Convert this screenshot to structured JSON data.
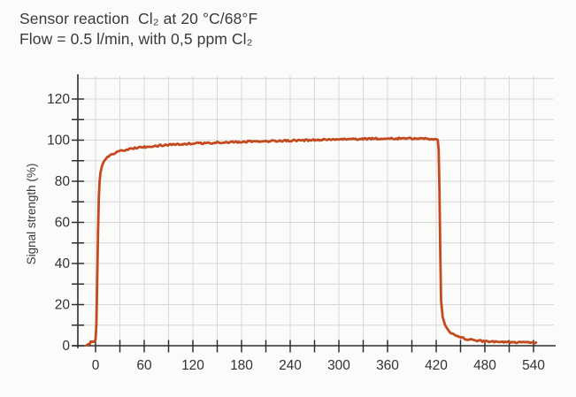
{
  "header": {
    "title_line1": "Sensor reaction  Cl₂ at 20 °C/68°F",
    "title_line2": "Flow = 0.5 l/min, with 0,5 ppm Cl₂"
  },
  "chart_data": {
    "type": "line",
    "title": "Sensor reaction  Cl₂ at 20 °C/68°F",
    "subtitle": "Flow = 0.5 l/min, with 0,5 ppm Cl₂",
    "xlabel": "",
    "ylabel": "Signal strength (%)",
    "xlim": [
      -22,
      566
    ],
    "ylim": [
      0,
      131
    ],
    "x_major_ticks": [
      0,
      60,
      120,
      180,
      240,
      300,
      360,
      420,
      480,
      540
    ],
    "x_minor_step": 30,
    "y_major_ticks": [
      0,
      20,
      40,
      60,
      80,
      100,
      120
    ],
    "y_minor_step": 10,
    "grid": {
      "on": true,
      "x_step": 30,
      "y_step": 10,
      "color": "#d8d8dc"
    },
    "legend": "none",
    "line_color": "#c24a1e",
    "axis_color": "#2e2e2e",
    "tick_label_color": "#333333",
    "points": [
      [
        -11,
        0.4
      ],
      [
        -9,
        0.5
      ],
      [
        -7,
        0.8
      ],
      [
        -6,
        2.0
      ],
      [
        -4,
        2.3
      ],
      [
        -2,
        2.1
      ],
      [
        -1,
        2.2
      ],
      [
        0,
        3
      ],
      [
        1,
        10
      ],
      [
        2,
        30
      ],
      [
        3,
        55
      ],
      [
        4,
        72
      ],
      [
        5,
        80
      ],
      [
        6,
        84
      ],
      [
        8,
        87.5
      ],
      [
        10,
        89.5
      ],
      [
        13,
        91
      ],
      [
        16,
        92
      ],
      [
        20,
        93
      ],
      [
        25,
        94
      ],
      [
        30,
        94.7
      ],
      [
        40,
        95.6
      ],
      [
        50,
        96.2
      ],
      [
        60,
        96.7
      ],
      [
        80,
        97.4
      ],
      [
        100,
        97.9
      ],
      [
        120,
        98.3
      ],
      [
        150,
        98.8
      ],
      [
        180,
        99.2
      ],
      [
        210,
        99.5
      ],
      [
        240,
        99.8
      ],
      [
        270,
        100.0
      ],
      [
        300,
        100.3
      ],
      [
        330,
        100.6
      ],
      [
        360,
        100.8
      ],
      [
        390,
        100.8
      ],
      [
        405,
        100.7
      ],
      [
        415,
        100.6
      ],
      [
        420,
        100.5
      ],
      [
        422,
        100
      ],
      [
        423,
        95
      ],
      [
        424,
        75
      ],
      [
        425,
        45
      ],
      [
        426,
        22
      ],
      [
        428,
        14
      ],
      [
        431,
        10
      ],
      [
        435,
        7.5
      ],
      [
        440,
        5.8
      ],
      [
        446,
        4.6
      ],
      [
        452,
        3.8
      ],
      [
        458,
        3.2
      ],
      [
        465,
        2.7
      ],
      [
        472,
        2.4
      ],
      [
        480,
        2.1
      ],
      [
        490,
        1.9
      ],
      [
        500,
        1.8
      ],
      [
        510,
        1.7
      ],
      [
        520,
        1.6
      ],
      [
        530,
        1.6
      ],
      [
        537,
        1.5
      ],
      [
        543,
        1.5
      ]
    ]
  }
}
